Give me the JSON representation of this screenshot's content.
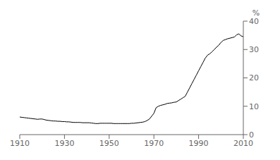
{
  "chart_data": {
    "type": "line",
    "ylabel": "%",
    "x": [
      1910,
      1911,
      1912,
      1913,
      1914,
      1915,
      1916,
      1917,
      1918,
      1919,
      1920,
      1921,
      1922,
      1923,
      1924,
      1925,
      1926,
      1927,
      1928,
      1929,
      1930,
      1931,
      1932,
      1933,
      1934,
      1935,
      1936,
      1937,
      1938,
      1939,
      1940,
      1941,
      1942,
      1943,
      1944,
      1945,
      1946,
      1947,
      1948,
      1949,
      1950,
      1951,
      1952,
      1953,
      1954,
      1955,
      1956,
      1957,
      1958,
      1959,
      1960,
      1961,
      1962,
      1963,
      1964,
      1965,
      1966,
      1967,
      1968,
      1969,
      1970,
      1971,
      1972,
      1973,
      1974,
      1975,
      1976,
      1977,
      1978,
      1979,
      1980,
      1981,
      1982,
      1983,
      1984,
      1985,
      1986,
      1987,
      1988,
      1989,
      1990,
      1991,
      1992,
      1993,
      1994,
      1995,
      1996,
      1997,
      1998,
      1999,
      2000,
      2001,
      2002,
      2003,
      2004,
      2005,
      2006,
      2007,
      2008,
      2009,
      2010
    ],
    "values": [
      6.2,
      6.1,
      6.0,
      5.9,
      5.8,
      5.7,
      5.6,
      5.5,
      5.4,
      5.5,
      5.5,
      5.3,
      5.1,
      5.0,
      4.9,
      4.8,
      4.8,
      4.7,
      4.7,
      4.6,
      4.6,
      4.5,
      4.5,
      4.4,
      4.3,
      4.3,
      4.3,
      4.3,
      4.2,
      4.2,
      4.2,
      4.2,
      4.1,
      4.0,
      3.9,
      3.9,
      4.0,
      4.0,
      4.0,
      4.0,
      4.0,
      4.0,
      3.9,
      3.9,
      3.9,
      3.9,
      3.9,
      3.9,
      3.9,
      3.9,
      4.0,
      4.0,
      4.1,
      4.2,
      4.3,
      4.4,
      4.6,
      5.0,
      5.5,
      6.5,
      7.5,
      9.5,
      10.0,
      10.3,
      10.5,
      10.7,
      11.0,
      11.1,
      11.2,
      11.4,
      11.5,
      12.0,
      12.5,
      13.0,
      13.5,
      15.0,
      16.5,
      18.0,
      19.5,
      21.0,
      22.5,
      24.0,
      25.5,
      27.0,
      28.0,
      28.5,
      29.2,
      30.0,
      30.8,
      31.5,
      32.5,
      33.2,
      33.5,
      33.8,
      34.0,
      34.2,
      34.4,
      35.2,
      35.5,
      34.8,
      34.5
    ],
    "xlim": [
      1910,
      2010
    ],
    "ylim": [
      0,
      40
    ],
    "xticks": [
      1910,
      1930,
      1950,
      1970,
      1990,
      2010
    ],
    "yticks": [
      0,
      10,
      20,
      30,
      40
    ],
    "color": "#000000",
    "grid": false
  }
}
